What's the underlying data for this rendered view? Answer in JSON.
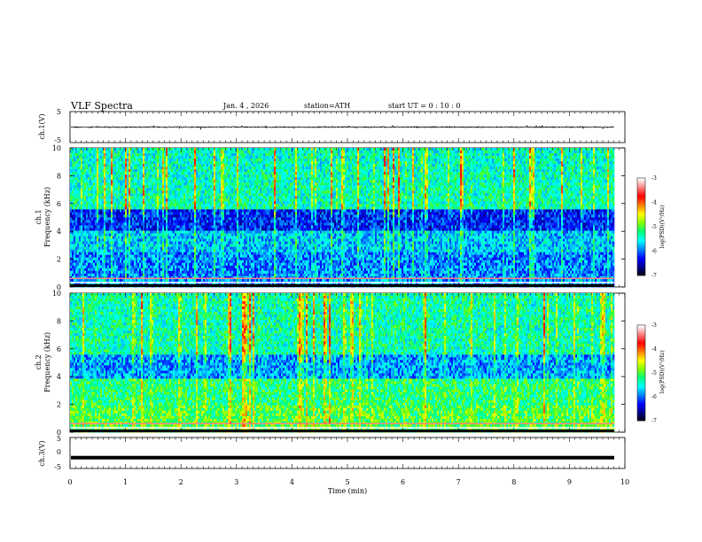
{
  "header": {
    "title": "VLF  Spectra",
    "date": "Jan. 4 , 2026",
    "station": "station=ATH",
    "start": "start  UT  =    0 : 10 : 0"
  },
  "chart_data": [
    {
      "type": "line",
      "name": "ch1-waveform",
      "ylabel": "ch.1(V)",
      "ylim": [
        -5,
        5
      ],
      "yticks": [
        "5",
        "-5"
      ],
      "x_range_min": [
        0,
        9.8
      ],
      "baseline_v": 0.0
    },
    {
      "type": "heatmap",
      "name": "ch1-spectrogram",
      "ylabel_channel": "ch.1",
      "ylabel": "Frequency  (kHz)",
      "ylim": [
        0,
        10
      ],
      "yticks": [
        "0",
        "2",
        "4",
        "6",
        "8",
        "10"
      ],
      "colorbar": {
        "label": "log(PSD)(V²/Hz)",
        "range": [
          -7,
          -3
        ],
        "ticks": [
          "-3",
          "-4",
          "-5",
          "-6",
          "-7"
        ]
      }
    },
    {
      "type": "heatmap",
      "name": "ch2-spectrogram",
      "ylabel_channel": "ch.2",
      "ylabel": "Frequency  (kHz)",
      "ylim": [
        0,
        10
      ],
      "yticks": [
        "0",
        "2",
        "4",
        "6",
        "8",
        "10"
      ],
      "colorbar": {
        "label": "log(PSD)(V²/Hz)",
        "range": [
          -7,
          -3
        ],
        "ticks": [
          "-3",
          "-4",
          "-5",
          "-6",
          "-7"
        ]
      }
    },
    {
      "type": "line",
      "name": "ch3-waveform",
      "ylabel": "ch.3(V)",
      "ylim": [
        -5,
        5
      ],
      "yticks": [
        "5",
        "0",
        "-5"
      ],
      "baseline_v": -1.5
    }
  ],
  "x_axis": {
    "label": "Time  (min)",
    "range": [
      0,
      10
    ],
    "ticks": [
      "0",
      "1",
      "2",
      "3",
      "4",
      "5",
      "6",
      "7",
      "8",
      "9",
      "10"
    ]
  },
  "colors": {
    "axis": "#000000",
    "colormap": [
      "#000000",
      "#00008b",
      "#0000ff",
      "#0080ff",
      "#00ffff",
      "#00ff80",
      "#80ff00",
      "#ffff00",
      "#ff8000",
      "#ff0000",
      "#ff8080",
      "#ffffff"
    ]
  }
}
